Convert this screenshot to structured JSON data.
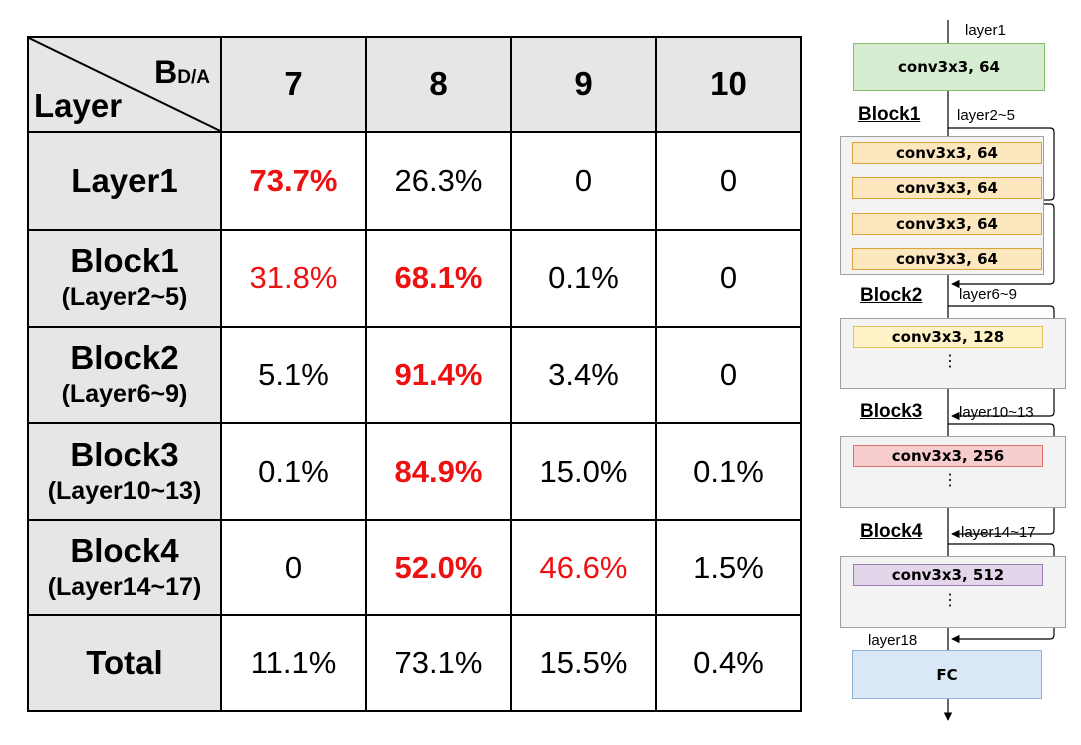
{
  "table": {
    "corner": {
      "b": "B",
      "b_sub": "D/A",
      "layer": "Layer"
    },
    "columns": [
      "7",
      "8",
      "9",
      "10"
    ],
    "rows": [
      {
        "name": "Layer1",
        "sub": "",
        "cells": [
          "73.7%",
          "26.3%",
          "0",
          "0"
        ]
      },
      {
        "name": "Block1",
        "sub": "(Layer2~5)",
        "cells": [
          "31.8%",
          "68.1%",
          "0.1%",
          "0"
        ]
      },
      {
        "name": "Block2",
        "sub": "(Layer6~9)",
        "cells": [
          "5.1%",
          "91.4%",
          "3.4%",
          "0"
        ]
      },
      {
        "name": "Block3",
        "sub": "(Layer10~13)",
        "cells": [
          "0.1%",
          "84.9%",
          "15.0%",
          "0.1%"
        ]
      },
      {
        "name": "Block4",
        "sub": "(Layer14~17)",
        "cells": [
          "0",
          "52.0%",
          "46.6%",
          "1.5%"
        ]
      }
    ],
    "total": {
      "name": "Total",
      "cells": [
        "11.1%",
        "73.1%",
        "15.5%",
        "0.4%"
      ]
    },
    "highlight_color": "#ee1111"
  },
  "diagram": {
    "layer1_label": "layer1",
    "conv1": "conv3x3, 64",
    "block1": {
      "title": "Block1",
      "range": "layer2~5",
      "convs": [
        "conv3x3, 64",
        "conv3x3, 64",
        "conv3x3, 64",
        "conv3x3, 64"
      ]
    },
    "block2": {
      "title": "Block2",
      "range": "layer6~9",
      "conv": "conv3x3, 128",
      "dots": "⋮"
    },
    "block3": {
      "title": "Block3",
      "range": "layer10~13",
      "conv": "conv3x3, 256",
      "dots": "⋮"
    },
    "block4": {
      "title": "Block4",
      "range": "layer14~17",
      "conv": "conv3x3, 512",
      "dots": "⋮"
    },
    "layer18_label": "layer18",
    "fc": "FC",
    "colors": {
      "conv1": "#d6ecd0",
      "block1": "#fde7bf",
      "block2": "#fff2c7",
      "block3": "#f6cdcc",
      "block4": "#e3d6ea",
      "fc": "#d9e7f7"
    }
  }
}
